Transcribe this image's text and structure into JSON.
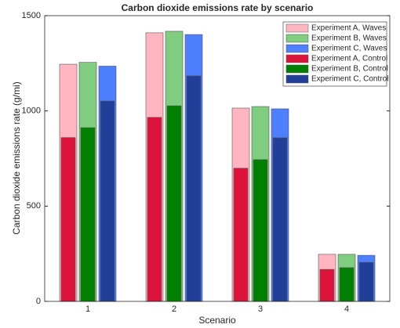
{
  "chart_data": {
    "type": "bar",
    "title": "Carbon dioxide emissions rate by scenario",
    "xlabel": "Scenario",
    "ylabel": "Carbon dioxide emissions rate (g/mi)",
    "categories": [
      "1",
      "2",
      "3",
      "4"
    ],
    "ylim": [
      0,
      1500
    ],
    "yticks": [
      0,
      500,
      1000,
      1500
    ],
    "legend": "upper-right",
    "series": [
      {
        "name": "Experiment A, Waves",
        "color": "#ffb6c1",
        "values": [
          1245,
          1410,
          1015,
          247
        ]
      },
      {
        "name": "Experiment B, Waves",
        "color": "#80cc80",
        "values": [
          1255,
          1418,
          1023,
          247
        ]
      },
      {
        "name": "Experiment C, Waves",
        "color": "#4d7fff",
        "values": [
          1235,
          1401,
          1011,
          242
        ]
      },
      {
        "name": "Experiment A, Control",
        "color": "#dc143c",
        "values": [
          860,
          966,
          699,
          168
        ]
      },
      {
        "name": "Experiment B, Control",
        "color": "#008000",
        "values": [
          912,
          1027,
          744,
          177
        ]
      },
      {
        "name": "Experiment C, Control",
        "color": "#213f99",
        "values": [
          1052,
          1184,
          859,
          205
        ]
      }
    ]
  }
}
